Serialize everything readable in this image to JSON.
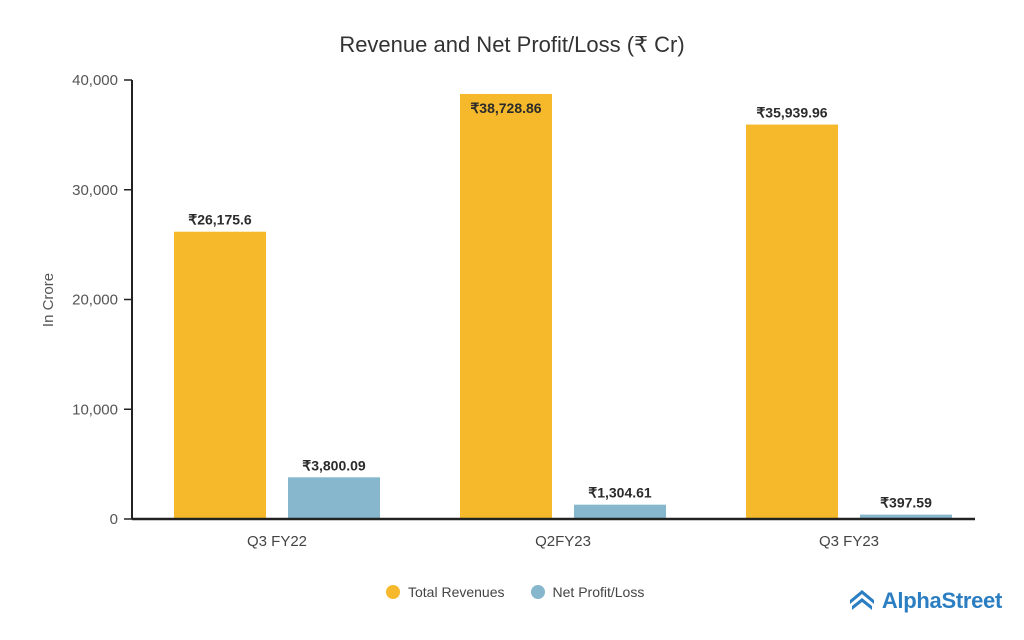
{
  "chart_data": {
    "type": "bar",
    "title": "Revenue and Net Profit/Loss (₹ Cr)",
    "ylabel": "In Crore",
    "xlabel": "",
    "ylim": [
      0,
      40000
    ],
    "yticks": [
      0,
      10000,
      20000,
      30000,
      40000
    ],
    "ytick_labels": [
      "0",
      "10,000",
      "20,000",
      "30,000",
      "40,000"
    ],
    "categories": [
      "Q3 FY22",
      "Q2FY23",
      "Q3 FY23"
    ],
    "series": [
      {
        "name": "Total Revenues",
        "color": "#f6b92b",
        "values": [
          26175.6,
          38728.86,
          35939.96
        ],
        "labels": [
          "₹26,175.6",
          "₹38,728.86",
          "₹35,939.96"
        ],
        "label_position": [
          "above",
          "inside",
          "above"
        ]
      },
      {
        "name": "Net Profit/Loss",
        "color": "#86b7cd",
        "values": [
          3800.09,
          1304.61,
          397.59
        ],
        "labels": [
          "₹3,800.09",
          "₹1,304.61",
          "₹397.59"
        ],
        "label_position": [
          "above",
          "above",
          "above"
        ]
      }
    ],
    "legend_position": "bottom-center",
    "grid": false
  },
  "branding": {
    "name": "AlphaStreet",
    "color": "#2b7ec1",
    "icon": "alphastreet-logo-icon"
  },
  "colors": {
    "axis": "#222222",
    "background": "#ffffff"
  }
}
